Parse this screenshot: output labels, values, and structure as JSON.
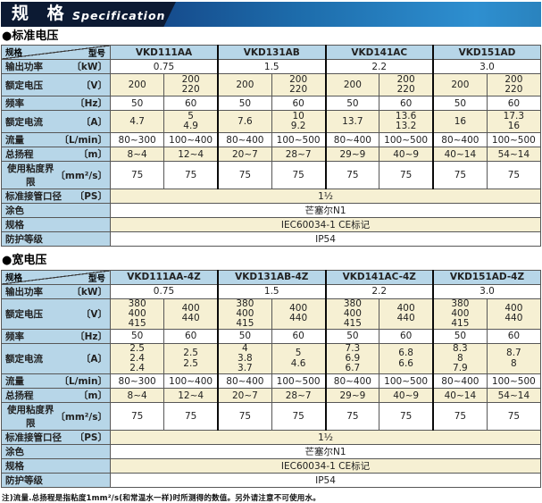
{
  "banner": {
    "title": "规 格",
    "subtitle": "Specification"
  },
  "corner": {
    "top_right": "型号",
    "bottom_left": "规格"
  },
  "colors": {
    "banner_dark": "#0c1a33",
    "banner_blue": "#2e8fd0",
    "header_blue": "#b7d6e8",
    "cell_cream": "#f6f0d3",
    "cell_white": "#ffffff"
  },
  "sections": [
    {
      "heading": "●标准电压",
      "models": [
        "VKD111AA",
        "VKD131AB",
        "VKD141AC",
        "VKD151AD"
      ],
      "rows": [
        {
          "label": "输出功率",
          "unit": "〔kW〕",
          "span": "pair",
          "shade": "white",
          "values": [
            "0.75",
            "1.5",
            "2.2",
            "3.0"
          ]
        },
        {
          "label": "额定电压",
          "unit": "〔V〕",
          "span": "cell",
          "shade": "cream",
          "values": [
            "200",
            "200\n220",
            "200",
            "200\n220",
            "200",
            "200\n220",
            "200",
            "200\n220"
          ]
        },
        {
          "label": "频率",
          "unit": "〔Hz〕",
          "span": "cell",
          "shade": "white",
          "values": [
            "50",
            "60",
            "50",
            "60",
            "50",
            "60",
            "50",
            "60"
          ]
        },
        {
          "label": "额定电流",
          "unit": "〔A〕",
          "span": "cell",
          "shade": "cream",
          "values": [
            "4.7",
            "5\n4.9",
            "7.6",
            "10\n9.2",
            "13.7",
            "13.6\n13.2",
            "16",
            "17.3\n16"
          ]
        },
        {
          "label": "流量",
          "unit": "〔L/min〕",
          "span": "cell",
          "shade": "white",
          "values": [
            "80~300",
            "100~400",
            "80~400",
            "100~500",
            "80~400",
            "100~500",
            "80~400",
            "100~500"
          ]
        },
        {
          "label": "总扬程",
          "unit": "〔m〕",
          "span": "cell",
          "shade": "cream",
          "values": [
            "8~4",
            "12~4",
            "20~7",
            "28~7",
            "29~9",
            "40~9",
            "40~14",
            "54~14"
          ]
        },
        {
          "label": "使用粘度界限",
          "unit": "〔mm²/s〕",
          "span": "cell",
          "shade": "white",
          "values": [
            "75",
            "75",
            "75",
            "75",
            "75",
            "75",
            "75",
            "75"
          ]
        },
        {
          "label": "标准接管口径",
          "unit": "〔PS〕",
          "span": "full",
          "shade": "cream",
          "values": [
            "1¹⁄₂"
          ]
        },
        {
          "label": "涂色",
          "unit": "",
          "span": "full",
          "shade": "white",
          "values": [
            "芒塞尔N1"
          ]
        },
        {
          "label": "规格",
          "unit": "",
          "span": "full",
          "shade": "cream",
          "values": [
            "IEC60034-1 CE标记"
          ]
        },
        {
          "label": "防护等级",
          "unit": "",
          "span": "full",
          "shade": "white",
          "values": [
            "IP54"
          ]
        }
      ]
    },
    {
      "heading": "●宽电压",
      "models": [
        "VKD111AA-4Z",
        "VKD131AB-4Z",
        "VKD141AC-4Z",
        "VKD151AD-4Z"
      ],
      "rows": [
        {
          "label": "输出功率",
          "unit": "〔kW〕",
          "span": "pair",
          "shade": "white",
          "values": [
            "0.75",
            "1.5",
            "2.2",
            "3.0"
          ]
        },
        {
          "label": "额定电压",
          "unit": "〔V〕",
          "span": "cell",
          "shade": "cream",
          "values": [
            "380\n400\n415",
            "400\n440",
            "380\n400\n415",
            "400\n440",
            "380\n400\n415",
            "400\n440",
            "380\n400\n415",
            "400\n440"
          ]
        },
        {
          "label": "频率",
          "unit": "〔Hz〕",
          "span": "cell",
          "shade": "white",
          "values": [
            "50",
            "60",
            "50",
            "60",
            "50",
            "60",
            "50",
            "60"
          ]
        },
        {
          "label": "额定电流",
          "unit": "〔A〕",
          "span": "cell",
          "shade": "cream",
          "values": [
            "2.5\n2.4\n2.4",
            "2.5\n2.5",
            "4\n3.8\n3.7",
            "5\n4.6",
            "7.3\n6.9\n6.7",
            "6.8\n6.6",
            "8.3\n8\n7.9",
            "8.7\n8"
          ]
        },
        {
          "label": "流量",
          "unit": "〔L/min〕",
          "span": "cell",
          "shade": "white",
          "values": [
            "80~300",
            "100~400",
            "80~400",
            "100~500",
            "80~400",
            "100~500",
            "80~400",
            "100~500"
          ]
        },
        {
          "label": "总扬程",
          "unit": "〔m〕",
          "span": "cell",
          "shade": "cream",
          "values": [
            "8~4",
            "12~4",
            "20~7",
            "28~7",
            "29~9",
            "40~9",
            "40~14",
            "54~14"
          ]
        },
        {
          "label": "使用粘度界限",
          "unit": "〔mm²/s〕",
          "span": "cell",
          "shade": "white",
          "values": [
            "75",
            "75",
            "75",
            "75",
            "75",
            "75",
            "75",
            "75"
          ]
        },
        {
          "label": "标准接管口径",
          "unit": "〔PS〕",
          "span": "full",
          "shade": "cream",
          "values": [
            "1¹⁄₂"
          ]
        },
        {
          "label": "涂色",
          "unit": "",
          "span": "full",
          "shade": "white",
          "values": [
            "芒塞尔N1"
          ]
        },
        {
          "label": "规格",
          "unit": "",
          "span": "full",
          "shade": "cream",
          "values": [
            "IEC60034-1 CE标记"
          ]
        },
        {
          "label": "防护等级",
          "unit": "",
          "span": "full",
          "shade": "white",
          "values": [
            "IP54"
          ]
        }
      ]
    }
  ],
  "footnote": "注)流量.总扬程是指粘度1mm²/s(和常温水一样)时所测得的数值。另外请注意不可使用水。"
}
